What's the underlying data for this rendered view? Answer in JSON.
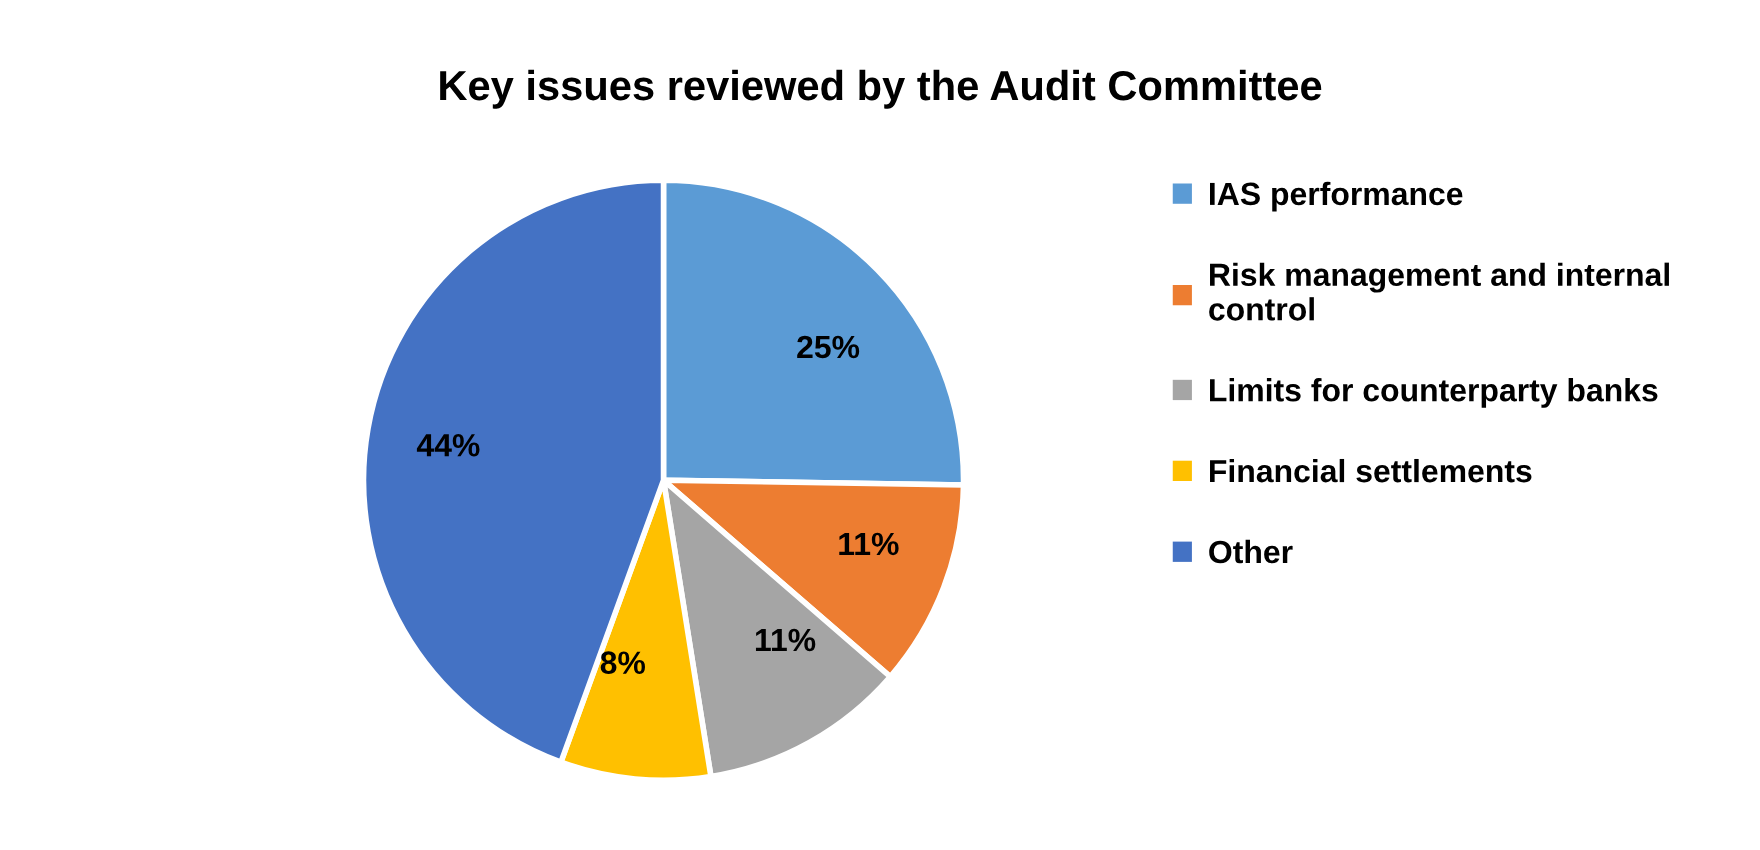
{
  "chart_data": {
    "type": "pie",
    "title": "Key issues reviewed by the Audit Committee",
    "categories": [
      "IAS performance",
      "Risk management and internal control",
      "Limits for counterparty banks",
      "Financial settlements",
      "Other"
    ],
    "values": [
      25,
      11,
      11,
      8,
      44
    ],
    "colors": [
      "#5b9bd5",
      "#ed7d31",
      "#a5a5a5",
      "#ffc000",
      "#4472c4"
    ],
    "value_labels": [
      "25%",
      "11%",
      "11%",
      "8%",
      "44%"
    ],
    "legend": "right"
  }
}
